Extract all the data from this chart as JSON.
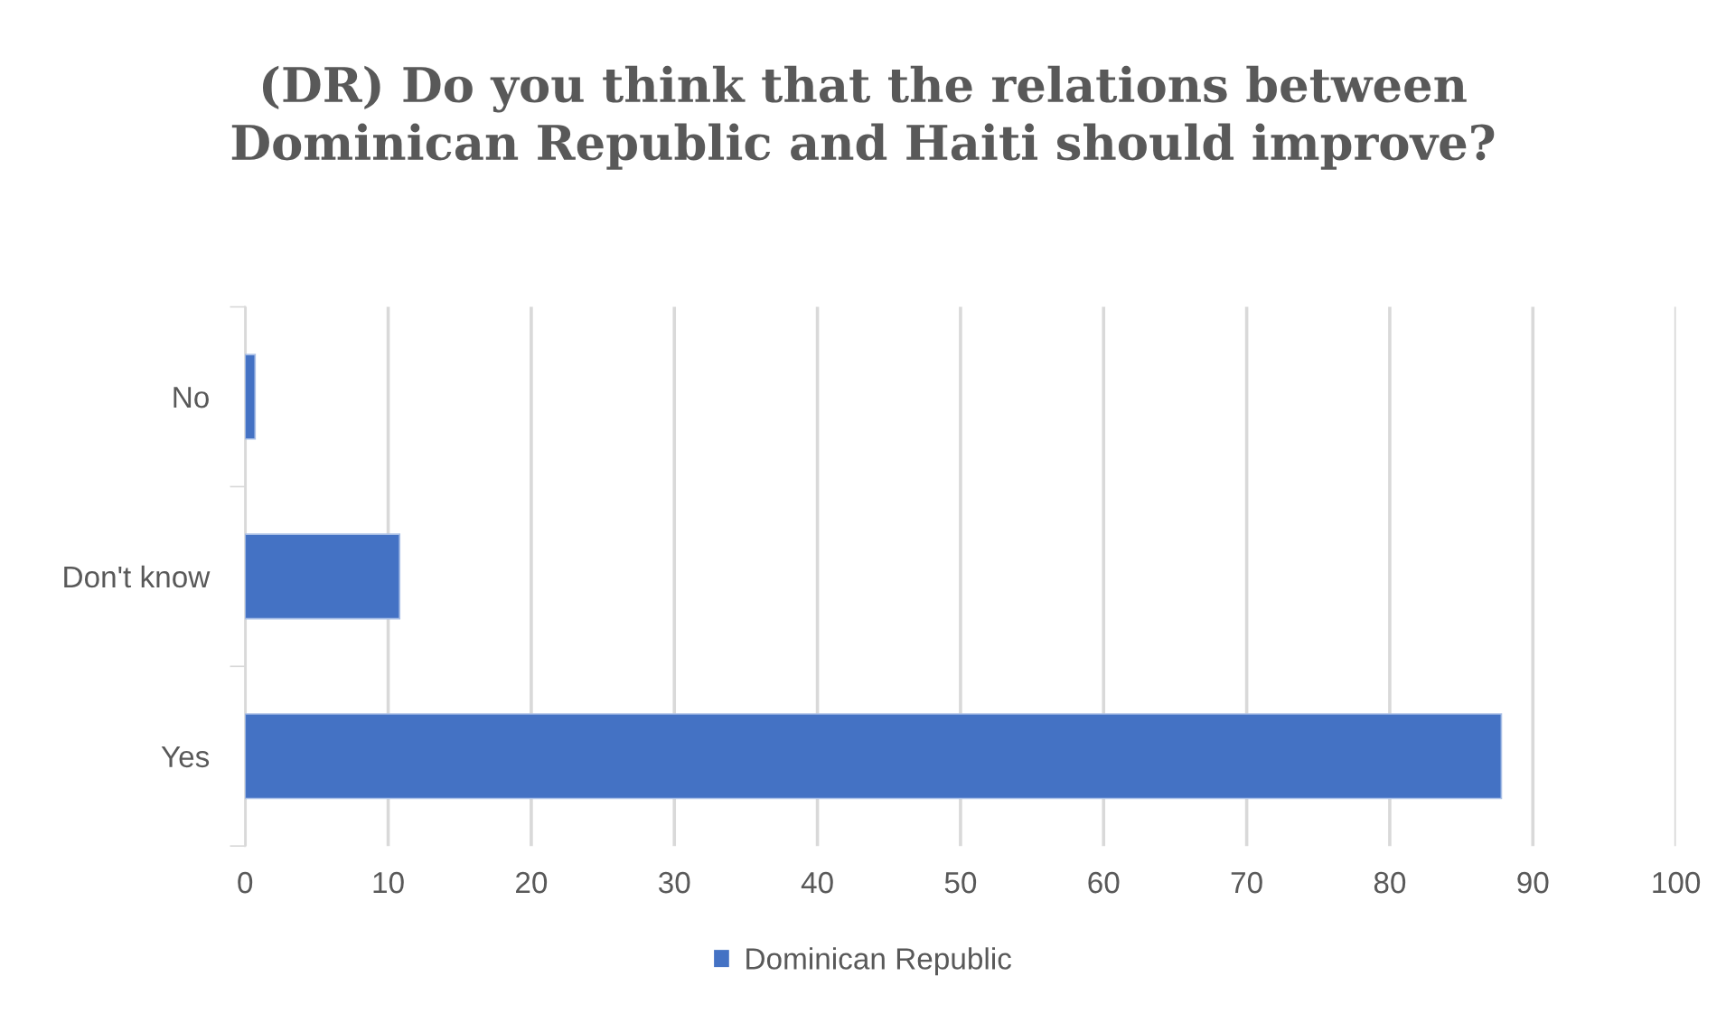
{
  "chart_data": {
    "type": "bar",
    "orientation": "horizontal",
    "title": "(DR) Do you think that the relations between\nDominican Republic and Haiti should improve?",
    "categories": [
      "No",
      "Don't know",
      "Yes"
    ],
    "series": [
      {
        "name": "Dominican Republic",
        "color": "#4472c4",
        "values": [
          0.7,
          10.8,
          87.8
        ]
      }
    ],
    "xlim": [
      0,
      100
    ],
    "xticks": [
      0,
      10,
      20,
      30,
      40,
      50,
      60,
      70,
      80,
      90,
      100
    ],
    "grid": "x",
    "legend": "bottom"
  }
}
